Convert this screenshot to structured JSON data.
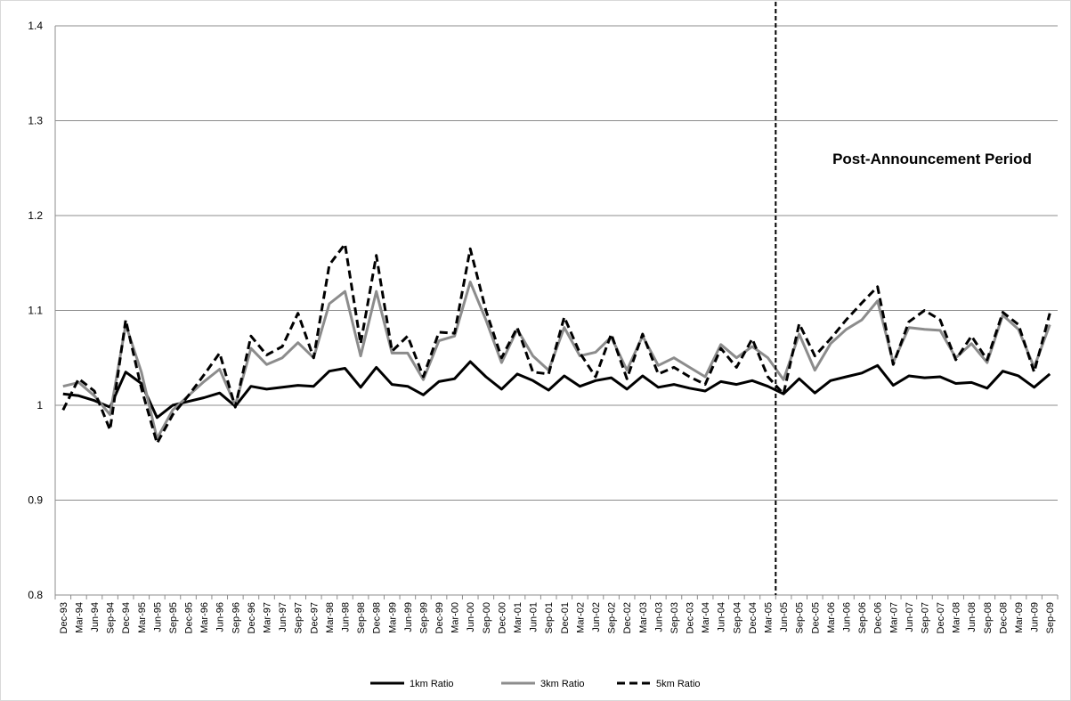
{
  "chart_data": {
    "type": "line",
    "title": "",
    "xlabel": "",
    "ylabel": "",
    "ylim": [
      0.8,
      1.4
    ],
    "yticks": [
      "0.8",
      "0.9",
      "1",
      "1.1",
      "1.2",
      "1.3",
      "1.4"
    ],
    "grid": "horizontal",
    "legend_position": "bottom",
    "annotation": "Post-Announcement Period",
    "event_marker_category": "Jun-05",
    "categories": [
      "Dec-93",
      "Mar-94",
      "Jun-94",
      "Sep-94",
      "Dec-94",
      "Mar-95",
      "Jun-95",
      "Sep-95",
      "Dec-95",
      "Mar-96",
      "Jun-96",
      "Sep-96",
      "Dec-96",
      "Mar-97",
      "Jun-97",
      "Sep-97",
      "Dec-97",
      "Mar-98",
      "Jun-98",
      "Sep-98",
      "Dec-98",
      "Mar-99",
      "Jun-99",
      "Sep-99",
      "Dec-99",
      "Mar-00",
      "Jun-00",
      "Sep-00",
      "Dec-00",
      "Mar-01",
      "Jun-01",
      "Sep-01",
      "Dec-01",
      "Mar-02",
      "Jun-02",
      "Sep-02",
      "Dec-02",
      "Mar-03",
      "Jun-03",
      "Sep-03",
      "Dec-03",
      "Mar-04",
      "Jun-04",
      "Sep-04",
      "Dec-04",
      "Mar-05",
      "Jun-05",
      "Sep-05",
      "Dec-05",
      "Mar-06",
      "Jun-06",
      "Sep-06",
      "Dec-06",
      "Mar-07",
      "Jun-07",
      "Sep-07",
      "Dec-07",
      "Mar-08",
      "Jun-08",
      "Sep-08",
      "Dec-08",
      "Mar-09",
      "Jun-09",
      "Sep-09"
    ],
    "series": [
      {
        "name": "1km Ratio",
        "color": "#000000",
        "dash": "solid",
        "values": [
          1.012,
          1.01,
          1.005,
          0.998,
          1.035,
          1.023,
          0.987,
          1.0,
          1.004,
          1.008,
          1.013,
          0.999,
          1.02,
          1.017,
          1.019,
          1.021,
          1.02,
          1.036,
          1.039,
          1.019,
          1.04,
          1.022,
          1.02,
          1.011,
          1.025,
          1.028,
          1.046,
          1.03,
          1.017,
          1.033,
          1.026,
          1.016,
          1.031,
          1.02,
          1.026,
          1.029,
          1.017,
          1.031,
          1.019,
          1.022,
          1.018,
          1.015,
          1.025,
          1.022,
          1.026,
          1.02,
          1.012,
          1.028,
          1.013,
          1.026,
          1.03,
          1.034,
          1.042,
          1.021,
          1.031,
          1.029,
          1.03,
          1.023,
          1.024,
          1.018,
          1.036,
          1.031,
          1.019,
          1.033
        ]
      },
      {
        "name": "3km Ratio",
        "color": "#8c8c8c",
        "dash": "solid",
        "values": [
          1.02,
          1.024,
          1.01,
          0.99,
          1.085,
          1.035,
          0.965,
          0.995,
          1.01,
          1.025,
          1.038,
          1.0,
          1.06,
          1.043,
          1.05,
          1.066,
          1.05,
          1.107,
          1.12,
          1.052,
          1.12,
          1.055,
          1.055,
          1.027,
          1.068,
          1.073,
          1.13,
          1.09,
          1.045,
          1.08,
          1.052,
          1.037,
          1.082,
          1.052,
          1.056,
          1.072,
          1.037,
          1.073,
          1.042,
          1.05,
          1.04,
          1.03,
          1.064,
          1.05,
          1.062,
          1.05,
          1.027,
          1.075,
          1.037,
          1.065,
          1.08,
          1.09,
          1.11,
          1.045,
          1.082,
          1.08,
          1.079,
          1.05,
          1.065,
          1.045,
          1.095,
          1.08,
          1.04,
          1.085
        ]
      },
      {
        "name": "5km Ratio",
        "color": "#000000",
        "dash": "dashed",
        "values": [
          0.995,
          1.028,
          1.015,
          0.974,
          1.09,
          1.018,
          0.96,
          0.99,
          1.01,
          1.032,
          1.055,
          0.998,
          1.073,
          1.053,
          1.062,
          1.097,
          1.05,
          1.148,
          1.17,
          1.065,
          1.158,
          1.057,
          1.073,
          1.03,
          1.077,
          1.076,
          1.165,
          1.1,
          1.05,
          1.082,
          1.035,
          1.033,
          1.093,
          1.055,
          1.03,
          1.075,
          1.028,
          1.075,
          1.033,
          1.04,
          1.03,
          1.022,
          1.06,
          1.04,
          1.07,
          1.03,
          1.012,
          1.086,
          1.052,
          1.07,
          1.09,
          1.108,
          1.125,
          1.043,
          1.088,
          1.1,
          1.09,
          1.048,
          1.073,
          1.048,
          1.098,
          1.085,
          1.035,
          1.097
        ]
      }
    ]
  }
}
